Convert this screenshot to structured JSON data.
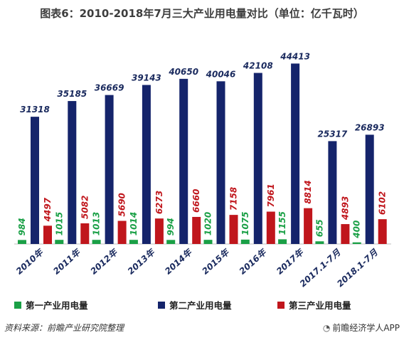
{
  "title": "图表6：2010-2018年7月三大产业用电量对比（单位：亿千瓦时）",
  "source": "资料来源：前瞻产业研究院整理",
  "brand": "前瞻经济学人APP",
  "colors": {
    "primary": "#1aa046",
    "secondary": "#15246b",
    "tertiary": "#c0161c"
  },
  "chart_data": {
    "type": "bar",
    "title": "图表6：2010-2018年7月三大产业用电量对比（单位：亿千瓦时）",
    "categories": [
      "2010年",
      "2011年",
      "2012年",
      "2013年",
      "2014年",
      "2015年",
      "2016年",
      "2017年",
      "2017.1-7月",
      "2018.1-7月"
    ],
    "series": [
      {
        "name": "第一产业用电量",
        "values": [
          984,
          1015,
          1013,
          1014,
          994,
          1020,
          1075,
          1155,
          655,
          400
        ]
      },
      {
        "name": "第二产业用电量",
        "values": [
          31318,
          35185,
          36669,
          39143,
          40650,
          40046,
          42108,
          44413,
          25317,
          26893
        ]
      },
      {
        "name": "第三产业用电量",
        "values": [
          4497,
          5082,
          5690,
          6273,
          6660,
          7158,
          7961,
          8814,
          4893,
          6102
        ]
      }
    ],
    "ylim": [
      0,
      45000
    ],
    "grid": false,
    "legend": "bottom"
  }
}
